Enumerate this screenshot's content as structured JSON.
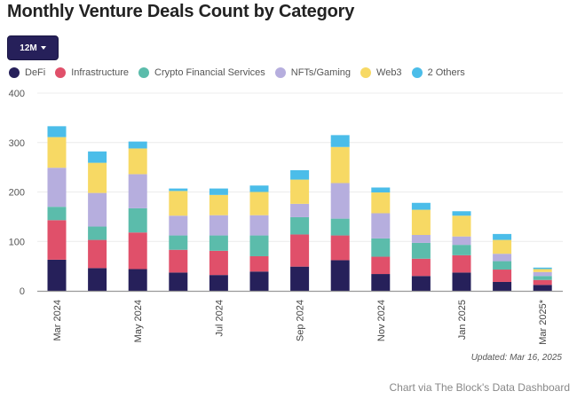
{
  "title": "Monthly Venture Deals Count by Category",
  "range_button": {
    "label": "12M",
    "icon": "caret-down-icon"
  },
  "updated": "Updated: Mar 16, 2025",
  "credit": "Chart via The Block's Data Dashboard",
  "chart_data": {
    "type": "bar",
    "stacked": true,
    "title": "Monthly Venture Deals Count by Category",
    "xlabel": "",
    "ylabel": "",
    "ylim": [
      0,
      400
    ],
    "yticks": [
      0,
      100,
      200,
      300,
      400
    ],
    "grid": true,
    "legend_position": "top-left",
    "categories": [
      "Mar 2024",
      "Apr 2024",
      "May 2024",
      "Jun 2024",
      "Jul 2024",
      "Aug 2024",
      "Sep 2024",
      "Oct 2024",
      "Nov 2024",
      "Dec 2024",
      "Jan 2025",
      "Feb 2025",
      "Mar 2025*"
    ],
    "tick_labels": [
      "Mar 2024",
      "",
      "May 2024",
      "",
      "Jul 2024",
      "",
      "Sep 2024",
      "",
      "Nov 2024",
      "",
      "Jan 2025",
      "",
      "Mar 2025*"
    ],
    "series": [
      {
        "name": "DeFi",
        "color": "#26205a",
        "values": [
          63,
          46,
          44,
          37,
          32,
          39,
          49,
          62,
          34,
          30,
          37,
          18,
          12
        ]
      },
      {
        "name": "Infrastructure",
        "color": "#e0506a",
        "values": [
          80,
          57,
          74,
          46,
          49,
          31,
          65,
          50,
          35,
          35,
          35,
          25,
          10
        ]
      },
      {
        "name": "Crypto Financial Services",
        "color": "#5bbcab",
        "values": [
          27,
          27,
          49,
          29,
          31,
          42,
          35,
          34,
          37,
          32,
          21,
          17,
          8
        ]
      },
      {
        "name": "NFTs/Gaming",
        "color": "#b6aede",
        "values": [
          79,
          68,
          69,
          40,
          41,
          41,
          27,
          72,
          51,
          16,
          17,
          15,
          8
        ]
      },
      {
        "name": "Web3",
        "color": "#f7d964",
        "values": [
          62,
          61,
          52,
          50,
          41,
          47,
          49,
          73,
          42,
          51,
          42,
          28,
          6
        ]
      },
      {
        "name": "2 Others",
        "color": "#4bbde9",
        "values": [
          22,
          23,
          14,
          5,
          13,
          13,
          19,
          24,
          10,
          14,
          9,
          12,
          3
        ]
      }
    ]
  }
}
